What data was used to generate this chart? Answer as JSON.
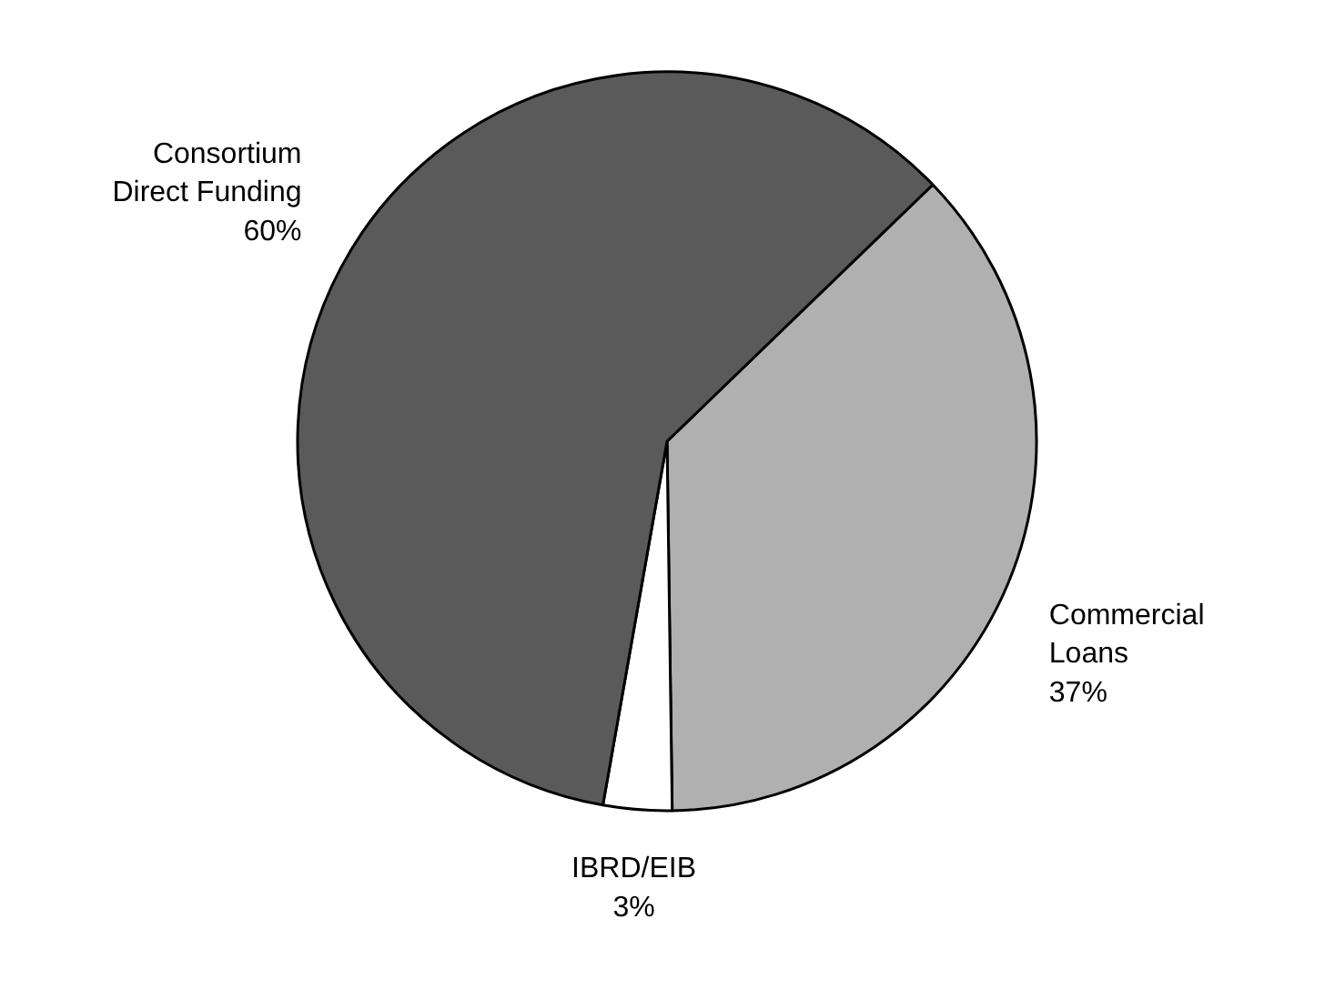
{
  "chart_data": {
    "type": "pie",
    "categories": [
      "Commercial Loans",
      "IBRD/EIB",
      "Consortium Direct Funding"
    ],
    "values": [
      37,
      3,
      60
    ],
    "value_labels": [
      "37%",
      "3%",
      "60%"
    ],
    "colors": [
      "#b0b0b0",
      "#ffffff",
      "#5a5a5a"
    ]
  }
}
